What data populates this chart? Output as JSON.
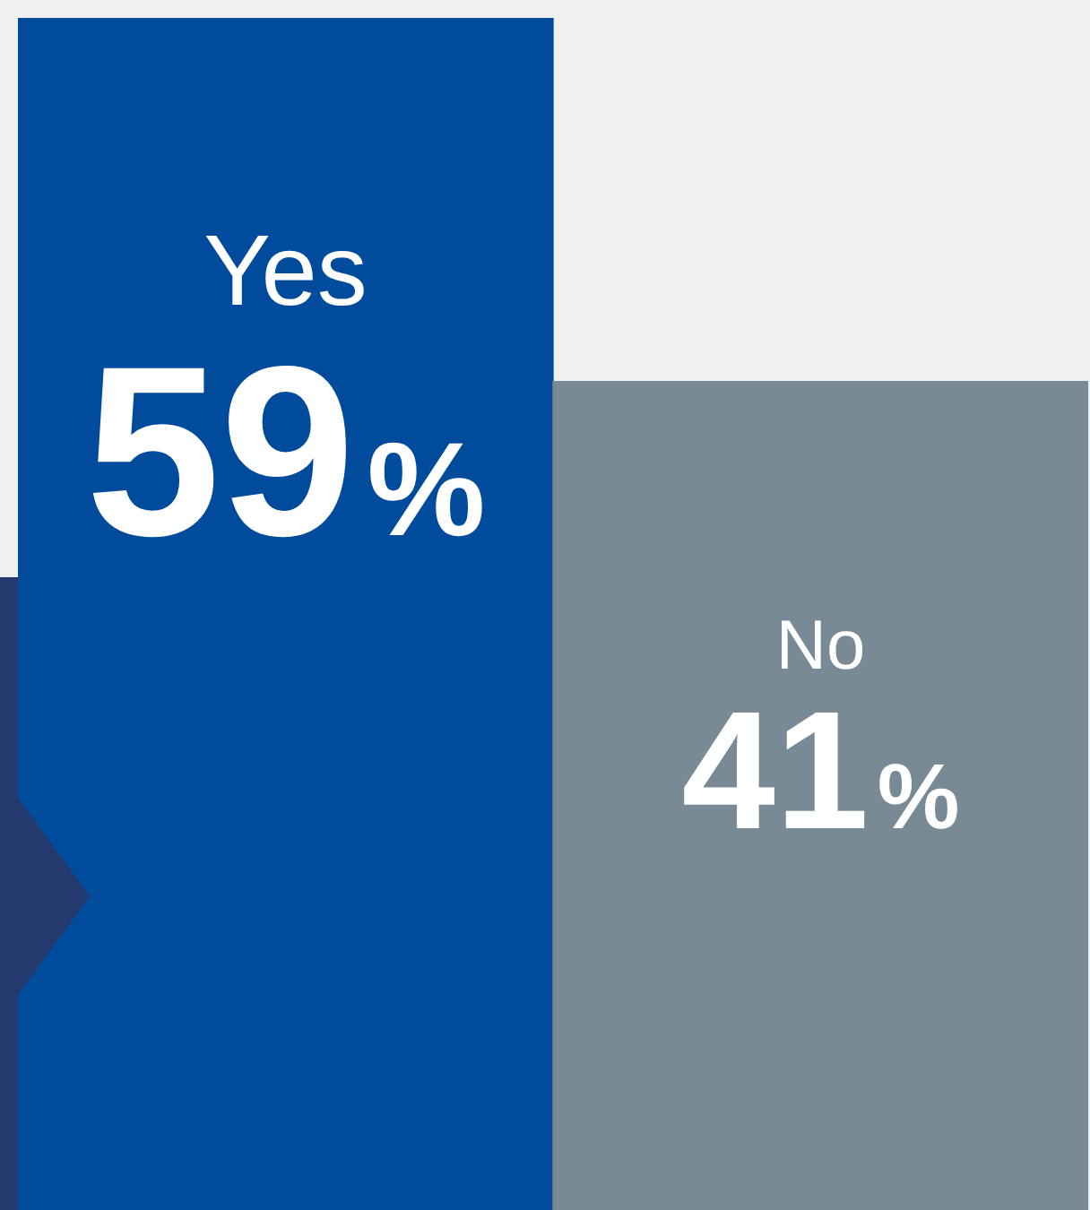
{
  "chart_data": {
    "type": "bar",
    "categories": [
      "Yes",
      "No"
    ],
    "values": [
      59,
      41
    ],
    "colors": [
      "#004b9b",
      "#778a96"
    ],
    "value_labels": [
      "59%",
      "41%"
    ],
    "tick_labels": false
  }
}
